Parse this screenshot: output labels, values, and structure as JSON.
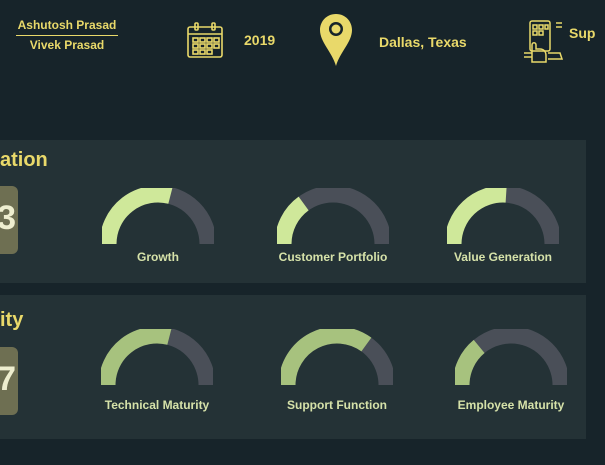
{
  "header": {
    "name_primary": "Ashutosh Prasad",
    "name_secondary": "Vivek Prasad",
    "year": "2019",
    "location": "Dallas, Texas",
    "truncated_label": "Sup"
  },
  "colors": {
    "background": "#17242a",
    "panel": "#243236",
    "accent_yellow": "#e9d96a",
    "gauge_track": "#4a4f58",
    "gauge_fill_bright": "#cfe89a",
    "gauge_fill_muted": "#a7c27e",
    "score_badge": "#6e6f52"
  },
  "panels": [
    {
      "title_fragment": "ation",
      "score_fragment": "3",
      "gauges": [
        {
          "label": "Growth",
          "fraction": 0.58
        },
        {
          "label": "Customer Portfolio",
          "fraction": 0.3
        },
        {
          "label": "Value Generation",
          "fraction": 0.52
        }
      ]
    },
    {
      "title_fragment": "ity",
      "score_fragment": "7",
      "gauges": [
        {
          "label": "Technical Maturity",
          "fraction": 0.58
        },
        {
          "label": "Support Function",
          "fraction": 0.7
        },
        {
          "label": "Employee Maturity",
          "fraction": 0.28
        }
      ]
    }
  ]
}
